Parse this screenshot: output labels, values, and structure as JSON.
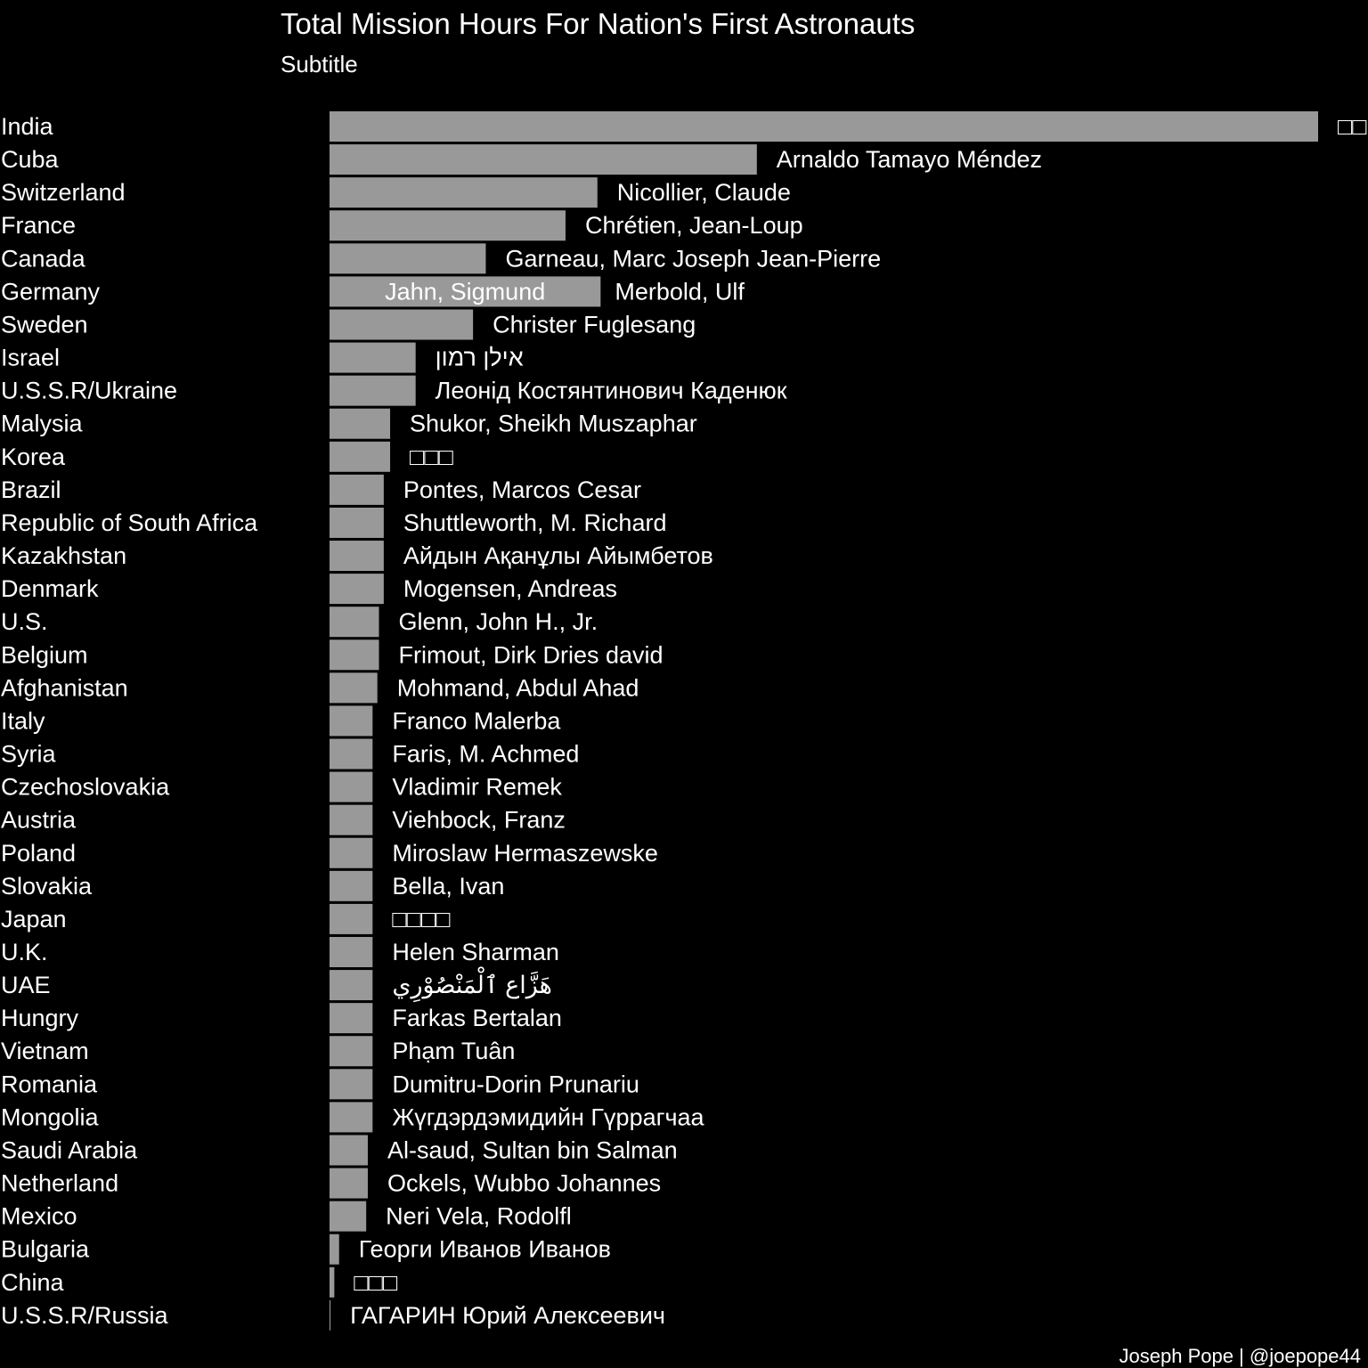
{
  "chart_data": {
    "type": "bar",
    "orientation": "horizontal",
    "title": "Total Mission Hours For Nation's First Astronauts",
    "subtitle": "Subtitle",
    "caption": "Joseph Pope | @joepope44",
    "colors": {
      "background": "#000000",
      "bar": "#999999",
      "text": "#ffffff"
    },
    "grid": false,
    "legend": "none",
    "xlim": [
      0,
      31
    ],
    "categories": [
      "India",
      "Cuba",
      "Switzerland",
      "France",
      "Canada",
      "Germany",
      "Sweden",
      "Israel",
      "U.S.S.R/Ukraine",
      "Malysia",
      "Korea",
      "Brazil",
      "Republic of South Africa",
      "Kazakhstan",
      "Denmark",
      "U.S.",
      "Belgium",
      "Afghanistan",
      "Italy",
      "Syria",
      "Czechoslovakia",
      "Austria",
      "Poland",
      "Slovakia",
      "Japan",
      "U.K.",
      "UAE",
      "Hungry",
      "Vietnam",
      "Romania",
      "Mongolia",
      "Saudi Arabia",
      "Netherland",
      "Mexico",
      "Bulgaria",
      "China",
      "U.S.S.R/Russia"
    ],
    "series": [
      {
        "values": [
          31.0,
          13.4,
          8.4,
          7.4,
          4.9,
          8.5,
          4.5,
          2.7,
          2.7,
          1.9,
          1.9,
          1.7,
          1.7,
          1.7,
          1.7,
          1.55,
          1.55,
          1.5,
          1.35,
          1.35,
          1.35,
          1.35,
          1.35,
          1.35,
          1.35,
          1.35,
          1.35,
          1.35,
          1.35,
          1.35,
          1.35,
          1.2,
          1.2,
          1.15,
          0.3,
          0.15,
          0.03
        ]
      }
    ],
    "labels": [
      [
        "□□"
      ],
      [
        "Arnaldo Tamayo Méndez"
      ],
      [
        "Nicollier, Claude"
      ],
      [
        "Chrétien, Jean-Loup"
      ],
      [
        "Garneau, Marc Joseph Jean-Pierre"
      ],
      [
        "Jahn, Sigmund",
        "Merbold, Ulf"
      ],
      [
        "Christer Fuglesang"
      ],
      [
        "אילן רמון"
      ],
      [
        "Леонід Костянтинович Каденюк"
      ],
      [
        "Shukor, Sheikh Muszaphar"
      ],
      [
        "□□□"
      ],
      [
        "Pontes, Marcos Cesar"
      ],
      [
        "Shuttleworth, M. Richard"
      ],
      [
        "Айдын Ақанұлы Айымбетов"
      ],
      [
        "Mogensen, Andreas"
      ],
      [
        "Glenn, John H., Jr."
      ],
      [
        "Frimout, Dirk Dries david"
      ],
      [
        "Mohmand, Abdul Ahad"
      ],
      [
        "Franco Malerba"
      ],
      [
        "Faris, M. Achmed"
      ],
      [
        "Vladimir Remek"
      ],
      [
        "Viehbock, Franz"
      ],
      [
        "Miroslaw Hermaszewske"
      ],
      [
        "Bella, Ivan"
      ],
      [
        "□□□□"
      ],
      [
        "Helen Sharman"
      ],
      [
        "هَزَّاع ٱلْمَنْصُوْرِي"
      ],
      [
        "Farkas Bertalan"
      ],
      [
        "Phạm Tuân"
      ],
      [
        "Dumitru-Dorin Prunariu"
      ],
      [
        "Жүгдэрдэмидийн Гүррагчаа"
      ],
      [
        "Al-saud, Sultan bin Salman"
      ],
      [
        "Ockels, Wubbo Johannes"
      ],
      [
        "Neri Vela, Rodolfl"
      ],
      [
        "Георги Иванов Иванов"
      ],
      [
        "□□□"
      ],
      [
        "ГАГАРИН Юрий Алексеевич"
      ]
    ]
  }
}
